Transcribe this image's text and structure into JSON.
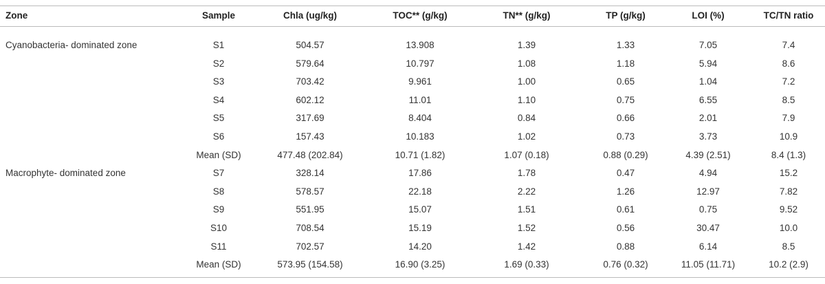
{
  "table": {
    "header": [
      "Zone",
      "Sample",
      "Chla (ug/kg)",
      "TOC** (g/kg)",
      "TN** (g/kg)",
      "TP (g/kg)",
      "LOI (%)",
      "TC/TN ratio"
    ],
    "groups": [
      {
        "zone": "Cyanobacteria- dominated zone",
        "rows": [
          [
            "S1",
            "504.57",
            "13.908",
            "1.39",
            "1.33",
            "7.05",
            "7.4"
          ],
          [
            "S2",
            "579.64",
            "10.797",
            "1.08",
            "1.18",
            "5.94",
            "8.6"
          ],
          [
            "S3",
            "703.42",
            "9.961",
            "1.00",
            "0.65",
            "1.04",
            "7.2"
          ],
          [
            "S4",
            "602.12",
            "11.01",
            "1.10",
            "0.75",
            "6.55",
            "8.5"
          ],
          [
            "S5",
            "317.69",
            "8.404",
            "0.84",
            "0.66",
            "2.01",
            "7.9"
          ],
          [
            "S6",
            "157.43",
            "10.183",
            "1.02",
            "0.73",
            "3.73",
            "10.9"
          ],
          [
            "Mean (SD)",
            "477.48  (202.84)",
            "10.71 (1.82)",
            "1.07 (0.18)",
            "0.88 (0.29)",
            "4.39 (2.51)",
            "8.4 (1.3)"
          ]
        ]
      },
      {
        "zone": "Macrophyte- dominated zone",
        "rows": [
          [
            "S7",
            "328.14",
            "17.86",
            "1.78",
            "0.47",
            "4.94",
            "15.2"
          ],
          [
            "S8",
            "578.57",
            "22.18",
            "2.22",
            "1.26",
            "12.97",
            "7.82"
          ],
          [
            "S9",
            "551.95",
            "15.07",
            "1.51",
            "0.61",
            "0.75",
            "9.52"
          ],
          [
            "S10",
            "708.54",
            "15.19",
            "1.52",
            "0.56",
            "30.47",
            "10.0"
          ],
          [
            "S11",
            "702.57",
            "14.20",
            "1.42",
            "0.88",
            "6.14",
            "8.5"
          ],
          [
            "Mean (SD)",
            "573.95 (154.58)",
            "16.90 (3.25)",
            "1.69 (0.33)",
            "0.76 (0.32)",
            "11.05 (11.71)",
            "10.2 (2.9)"
          ]
        ]
      }
    ]
  }
}
